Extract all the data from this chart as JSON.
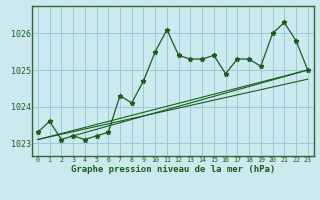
{
  "hours": [
    0,
    1,
    2,
    3,
    4,
    5,
    6,
    7,
    8,
    9,
    10,
    11,
    12,
    13,
    14,
    15,
    16,
    17,
    18,
    19,
    20,
    21,
    22,
    23
  ],
  "pressure": [
    1023.3,
    1023.6,
    1023.1,
    1023.2,
    1023.1,
    1023.2,
    1023.3,
    1024.3,
    1024.1,
    1024.7,
    1025.5,
    1026.1,
    1025.4,
    1025.3,
    1025.3,
    1025.4,
    1024.9,
    1025.3,
    1025.3,
    1025.1,
    1026.0,
    1026.3,
    1025.8,
    1025.0
  ],
  "trend1_x": [
    0,
    23
  ],
  "trend1_y": [
    1023.1,
    1025.0
  ],
  "trend2_x": [
    0,
    23
  ],
  "trend2_y": [
    1023.1,
    1024.75
  ],
  "trend3_x": [
    3,
    23
  ],
  "trend3_y": [
    1023.2,
    1025.0
  ],
  "bg_color": "#cce9f0",
  "line_color": "#1a5c1a",
  "grid_color": "#99ccd6",
  "text_color": "#1a5c1a",
  "border_color": "#336633",
  "ylabel_ticks": [
    1023,
    1024,
    1025,
    1026
  ],
  "ylim": [
    1022.65,
    1026.75
  ],
  "xlim": [
    -0.5,
    23.5
  ],
  "xlabel": "Graphe pression niveau de la mer (hPa)"
}
